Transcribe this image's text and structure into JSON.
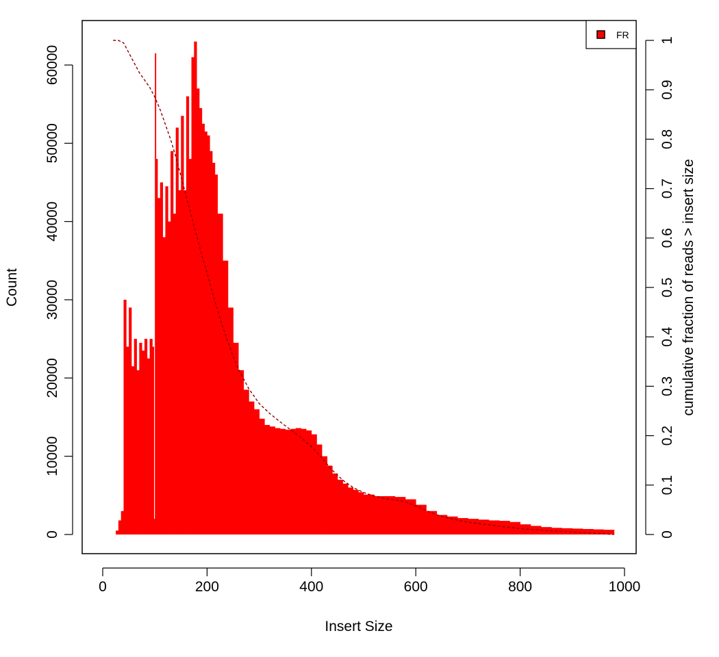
{
  "chart_data": {
    "type": "bar",
    "xlabel": "Insert Size",
    "ylabel": "Count",
    "y2label": "cumulative fraction of reads > insert size",
    "xlim": [
      0,
      1000
    ],
    "ylim": [
      0,
      65000
    ],
    "y2lim": [
      0,
      1
    ],
    "xticks": [
      "0",
      "200",
      "400",
      "600",
      "800",
      "1000"
    ],
    "yticks": [
      "0",
      "10000",
      "20000",
      "30000",
      "40000",
      "50000",
      "60000"
    ],
    "y2ticks": [
      "0",
      "0.1",
      "0.2",
      "0.3",
      "0.4",
      "0.5",
      "0.6",
      "0.7",
      "0.8",
      "0.9",
      "1"
    ],
    "legend": {
      "position": "top-right",
      "entries": [
        "FR"
      ]
    },
    "colors": {
      "histogram": "#ff0000",
      "cumulative": "#8b0000"
    },
    "series": [
      {
        "name": "FR",
        "kind": "histogram",
        "x": [
          20,
          25,
          30,
          35,
          40,
          45,
          50,
          55,
          60,
          65,
          70,
          75,
          80,
          85,
          90,
          95,
          98,
          100,
          102,
          105,
          110,
          115,
          120,
          125,
          130,
          135,
          140,
          145,
          150,
          155,
          160,
          165,
          170,
          175,
          180,
          185,
          190,
          195,
          200,
          205,
          210,
          215,
          220,
          230,
          240,
          250,
          260,
          270,
          280,
          290,
          300,
          310,
          320,
          330,
          340,
          350,
          360,
          370,
          380,
          390,
          400,
          410,
          420,
          430,
          440,
          450,
          460,
          470,
          480,
          490,
          500,
          520,
          540,
          560,
          580,
          600,
          620,
          640,
          660,
          680,
          700,
          720,
          740,
          760,
          780,
          800,
          820,
          840,
          860,
          880,
          900,
          920,
          940,
          960,
          980
        ],
        "y": [
          0,
          500,
          1800,
          3000,
          30000,
          24000,
          29000,
          21500,
          25000,
          21000,
          24500,
          23500,
          25000,
          22500,
          25000,
          24000,
          2000,
          61500,
          48000,
          43000,
          45000,
          38000,
          44500,
          40000,
          49000,
          41000,
          52000,
          44000,
          53500,
          44000,
          56000,
          48000,
          61000,
          63000,
          57000,
          54500,
          52500,
          51500,
          51000,
          49000,
          47500,
          46000,
          41000,
          35000,
          29000,
          24500,
          21000,
          18500,
          17000,
          16000,
          14800,
          14000,
          13800,
          13600,
          13500,
          13400,
          13500,
          13600,
          13500,
          13300,
          12800,
          11500,
          10000,
          8800,
          7800,
          7000,
          6500,
          6000,
          5700,
          5400,
          5100,
          4900,
          4900,
          4800,
          4500,
          3800,
          3000,
          2500,
          2300,
          2100,
          2000,
          1900,
          1800,
          1750,
          1600,
          1300,
          1100,
          950,
          850,
          800,
          750,
          700,
          650,
          600,
          550
        ]
      },
      {
        "name": "",
        "kind": "cumulative",
        "x": [
          20,
          30,
          40,
          50,
          60,
          70,
          80,
          90,
          100,
          110,
          120,
          130,
          140,
          150,
          160,
          170,
          180,
          190,
          200,
          210,
          220,
          230,
          240,
          250,
          260,
          270,
          280,
          290,
          300,
          320,
          340,
          360,
          380,
          400,
          420,
          440,
          460,
          480,
          500,
          520,
          540,
          560,
          580,
          600,
          620,
          640,
          660,
          680,
          700,
          750,
          800,
          850,
          900,
          950,
          980
        ],
        "y": [
          1.0,
          1.0,
          0.995,
          0.975,
          0.955,
          0.935,
          0.92,
          0.905,
          0.885,
          0.86,
          0.83,
          0.8,
          0.765,
          0.725,
          0.685,
          0.645,
          0.605,
          0.565,
          0.53,
          0.49,
          0.455,
          0.42,
          0.39,
          0.36,
          0.335,
          0.315,
          0.295,
          0.28,
          0.265,
          0.245,
          0.228,
          0.212,
          0.196,
          0.178,
          0.155,
          0.13,
          0.11,
          0.095,
          0.085,
          0.078,
          0.073,
          0.07,
          0.066,
          0.058,
          0.048,
          0.04,
          0.034,
          0.029,
          0.025,
          0.018,
          0.012,
          0.008,
          0.005,
          0.002,
          0.0
        ]
      }
    ]
  }
}
